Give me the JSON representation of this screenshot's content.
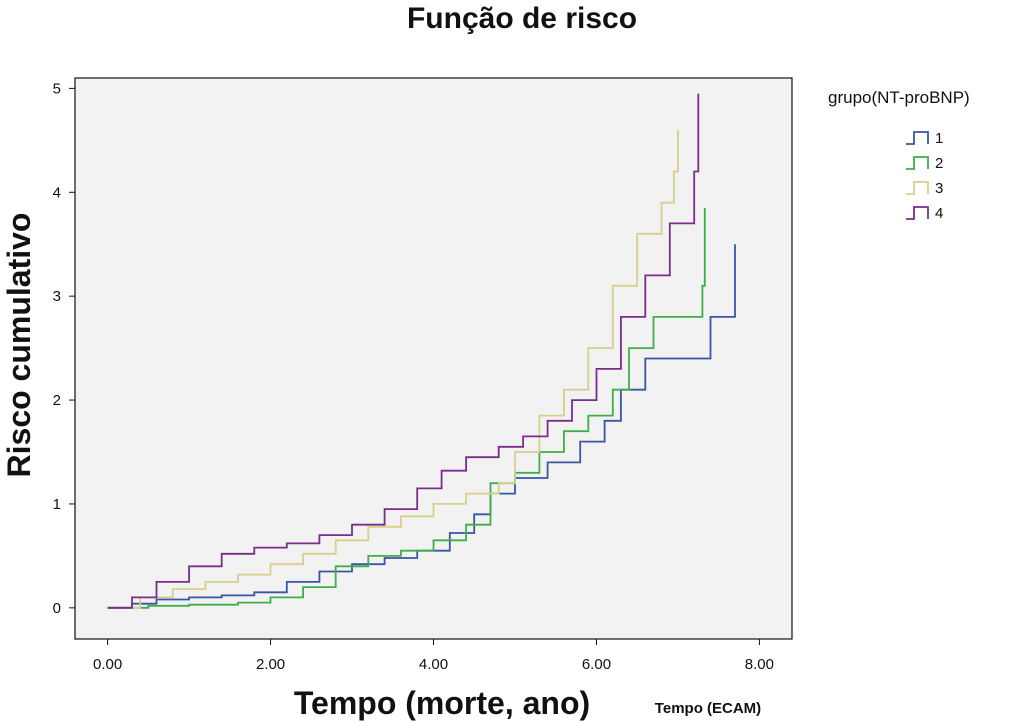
{
  "chart_data": {
    "type": "line",
    "step": true,
    "title": "Função de risco",
    "xlabel": "Tempo (morte, ano)",
    "xlabel_note": "Tempo (ECAM)",
    "ylabel": "Risco cumulativo",
    "xlim": [
      -0.4,
      8.4
    ],
    "ylim": [
      -0.3,
      5.1
    ],
    "x_ticks": [
      0,
      2,
      4,
      6,
      8
    ],
    "x_tick_labels": [
      "0.00",
      "2.00",
      "4.00",
      "6.00",
      "8.00"
    ],
    "y_ticks": [
      0,
      1,
      2,
      3,
      4,
      5
    ],
    "y_tick_labels": [
      "0",
      "1",
      "2",
      "3",
      "4",
      "5"
    ],
    "grid": false,
    "plot_background": "#f2f2f2",
    "legend": {
      "title": "grupo(NT-proBNP)",
      "position": "top-right outside"
    },
    "series": [
      {
        "name": "1",
        "color": "#3a55a4",
        "x": [
          0,
          0.3,
          0.6,
          1.0,
          1.4,
          1.8,
          2.2,
          2.6,
          3.0,
          3.4,
          3.8,
          4.2,
          4.5,
          4.7,
          5.0,
          5.4,
          5.8,
          6.1,
          6.3,
          6.6,
          7.2,
          7.4,
          7.6,
          7.7
        ],
        "y": [
          0,
          0.04,
          0.08,
          0.1,
          0.12,
          0.15,
          0.25,
          0.35,
          0.42,
          0.48,
          0.55,
          0.72,
          0.9,
          1.1,
          1.25,
          1.4,
          1.6,
          1.8,
          2.1,
          2.4,
          2.4,
          2.8,
          2.8,
          3.5
        ]
      },
      {
        "name": "2",
        "color": "#3fae49",
        "x": [
          0,
          0.5,
          1.0,
          1.6,
          2.0,
          2.4,
          2.8,
          3.2,
          3.6,
          4.0,
          4.4,
          4.7,
          5.0,
          5.3,
          5.6,
          5.9,
          6.2,
          6.4,
          6.7,
          7.0,
          7.3,
          7.33
        ],
        "y": [
          0,
          0.02,
          0.03,
          0.05,
          0.1,
          0.2,
          0.4,
          0.5,
          0.55,
          0.65,
          0.8,
          1.2,
          1.3,
          1.5,
          1.7,
          1.85,
          2.1,
          2.5,
          2.8,
          2.8,
          3.1,
          3.85
        ]
      },
      {
        "name": "3",
        "color": "#d8cf8c",
        "x": [
          0,
          0.4,
          0.8,
          1.2,
          1.6,
          2.0,
          2.4,
          2.8,
          3.2,
          3.6,
          4.0,
          4.4,
          4.8,
          5.0,
          5.3,
          5.6,
          5.9,
          6.2,
          6.5,
          6.8,
          6.95,
          7.0
        ],
        "y": [
          0,
          0.1,
          0.18,
          0.25,
          0.32,
          0.42,
          0.52,
          0.65,
          0.78,
          0.88,
          1.0,
          1.1,
          1.2,
          1.5,
          1.85,
          2.1,
          2.5,
          3.1,
          3.6,
          3.9,
          4.2,
          4.6
        ]
      },
      {
        "name": "4",
        "color": "#7b2d8b",
        "x": [
          0,
          0.3,
          0.6,
          1.0,
          1.4,
          1.8,
          2.2,
          2.6,
          3.0,
          3.4,
          3.8,
          4.1,
          4.4,
          4.8,
          5.1,
          5.4,
          5.7,
          6.0,
          6.3,
          6.6,
          6.9,
          7.2,
          7.25
        ],
        "y": [
          0,
          0.1,
          0.25,
          0.4,
          0.52,
          0.58,
          0.62,
          0.7,
          0.8,
          0.95,
          1.15,
          1.32,
          1.45,
          1.55,
          1.65,
          1.8,
          2.0,
          2.3,
          2.8,
          3.2,
          3.7,
          4.2,
          4.95
        ]
      }
    ]
  }
}
